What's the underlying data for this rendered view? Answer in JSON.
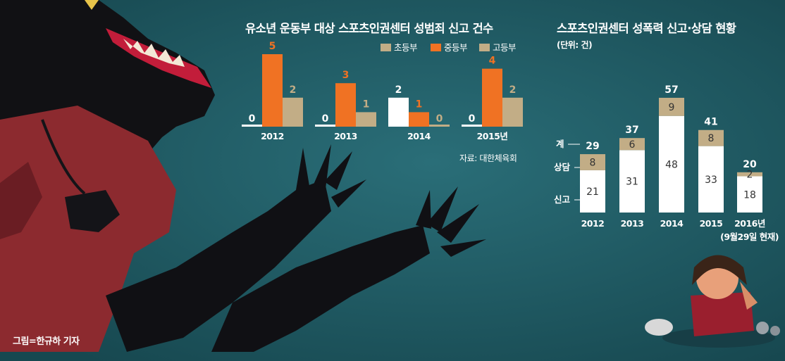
{
  "credit": "그림=한규하 기자",
  "colors": {
    "elementary": "#c2ad86",
    "middle": "#f07223",
    "high": "#c2ad86",
    "report": "#ffffff",
    "consult": "#c2ad86",
    "label_light": "#ffffff",
    "label_orange": "#f07223",
    "label_tan": "#c2ad86"
  },
  "chart_data": [
    {
      "type": "bar",
      "title": "유소년 운동부 대상 스포츠인권센터 성범죄 신고 건수",
      "categories": [
        "2012",
        "2013",
        "2014",
        "2015년"
      ],
      "series": [
        {
          "name": "초등부",
          "values": [
            0,
            0,
            2,
            0
          ]
        },
        {
          "name": "중등부",
          "values": [
            5,
            3,
            1,
            4
          ]
        },
        {
          "name": "고등부",
          "values": [
            2,
            1,
            0,
            2
          ]
        }
      ],
      "legend_position": "top-right",
      "source": "자료: 대한체육회"
    },
    {
      "type": "bar",
      "stacked": true,
      "title": "스포츠인권센터 성폭력 신고·상담 현황",
      "unit": "(단위: 건)",
      "categories": [
        "2012",
        "2013",
        "2014",
        "2015",
        "2016년"
      ],
      "category_note": "(9월29일 현재)",
      "series": [
        {
          "name": "신고",
          "values": [
            21,
            31,
            48,
            33,
            18
          ]
        },
        {
          "name": "상담",
          "values": [
            8,
            6,
            9,
            8,
            2
          ]
        }
      ],
      "totals": [
        29,
        37,
        57,
        41,
        20
      ],
      "total_label": "계",
      "side_labels": [
        "계",
        "상담",
        "신고"
      ]
    }
  ]
}
